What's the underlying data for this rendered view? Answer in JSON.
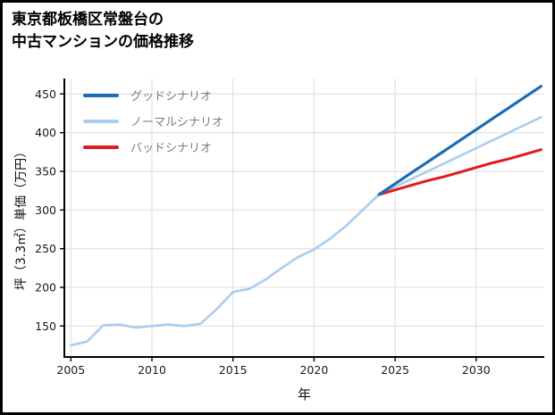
{
  "title": {
    "line1": "東京都板橋区常盤台の",
    "line2": "中古マンションの価格推移"
  },
  "chart_data": {
    "type": "line",
    "title": "東京都板橋区常盤台の中古マンションの価格推移",
    "xlabel": "年",
    "ylabel": "坪（3.3㎡）単価（万円）",
    "xlim": [
      2004.6,
      2034.2
    ],
    "ylim": [
      110,
      470
    ],
    "x_ticks": [
      2005,
      2010,
      2015,
      2020,
      2025,
      2030
    ],
    "y_ticks": [
      150,
      200,
      250,
      300,
      350,
      400,
      450
    ],
    "grid": true,
    "legend_position": "top-left",
    "series": [
      {
        "name": "グッドシナリオ",
        "color": "#1b6cb5",
        "width": 3.2,
        "z": 3,
        "x": [
          2024,
          2025,
          2026,
          2027,
          2028,
          2029,
          2030,
          2031,
          2032,
          2033,
          2034
        ],
        "values": [
          320,
          334,
          348,
          362,
          376,
          390,
          404,
          418,
          432,
          446,
          460
        ]
      },
      {
        "name": "ノーマルシナリオ",
        "color": "#a9cdee",
        "width": 2.6,
        "z": 1,
        "x": [
          2005,
          2006,
          2007,
          2008,
          2009,
          2010,
          2011,
          2012,
          2013,
          2014,
          2015,
          2016,
          2017,
          2018,
          2019,
          2020,
          2021,
          2022,
          2023,
          2024,
          2025,
          2026,
          2027,
          2028,
          2029,
          2030,
          2031,
          2032,
          2033,
          2034
        ],
        "values": [
          125,
          130,
          151,
          152,
          148,
          150,
          152,
          150,
          153,
          172,
          194,
          198,
          210,
          225,
          239,
          249,
          263,
          280,
          300,
          320,
          330,
          340,
          350,
          360,
          370,
          380,
          390,
          400,
          410,
          420
        ]
      },
      {
        "name": "バッドシナリオ",
        "color": "#e31a1c",
        "width": 3.0,
        "z": 2,
        "x": [
          2024,
          2025,
          2026,
          2027,
          2028,
          2029,
          2030,
          2031,
          2032,
          2033,
          2034
        ],
        "values": [
          320,
          326,
          332,
          338,
          343,
          349,
          355,
          361,
          366,
          372,
          378
        ]
      }
    ]
  }
}
